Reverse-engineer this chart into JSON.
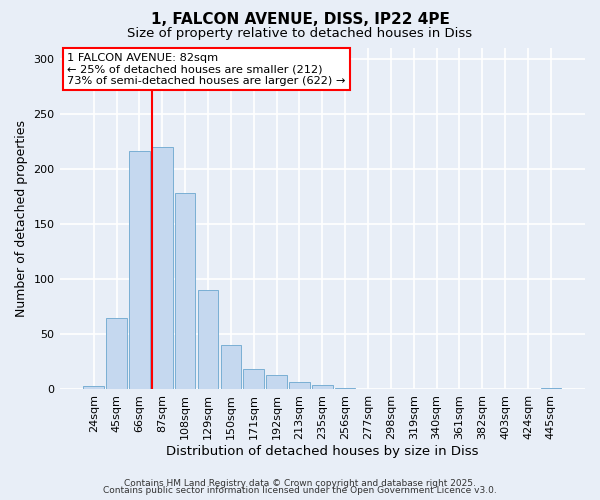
{
  "title": "1, FALCON AVENUE, DISS, IP22 4PE",
  "subtitle": "Size of property relative to detached houses in Diss",
  "xlabel": "Distribution of detached houses by size in Diss",
  "ylabel": "Number of detached properties",
  "bar_color": "#c5d8ef",
  "bar_edge_color": "#7aafd4",
  "bg_color": "#e8eef7",
  "grid_color": "white",
  "categories": [
    "24sqm",
    "45sqm",
    "66sqm",
    "87sqm",
    "108sqm",
    "129sqm",
    "150sqm",
    "171sqm",
    "192sqm",
    "213sqm",
    "235sqm",
    "256sqm",
    "277sqm",
    "298sqm",
    "319sqm",
    "340sqm",
    "361sqm",
    "382sqm",
    "403sqm",
    "424sqm",
    "445sqm"
  ],
  "values": [
    3,
    64,
    216,
    220,
    178,
    90,
    40,
    18,
    13,
    6,
    4,
    1,
    0,
    0,
    0,
    0,
    0,
    0,
    0,
    0,
    1
  ],
  "ylim": [
    0,
    310
  ],
  "yticks": [
    0,
    50,
    100,
    150,
    200,
    250,
    300
  ],
  "vline_color": "red",
  "vline_pos": 2.57,
  "annotation_title": "1 FALCON AVENUE: 82sqm",
  "annotation_line2": "← 25% of detached houses are smaller (212)",
  "annotation_line3": "73% of semi-detached houses are larger (622) →",
  "footer1": "Contains HM Land Registry data © Crown copyright and database right 2025.",
  "footer2": "Contains public sector information licensed under the Open Government Licence v3.0."
}
